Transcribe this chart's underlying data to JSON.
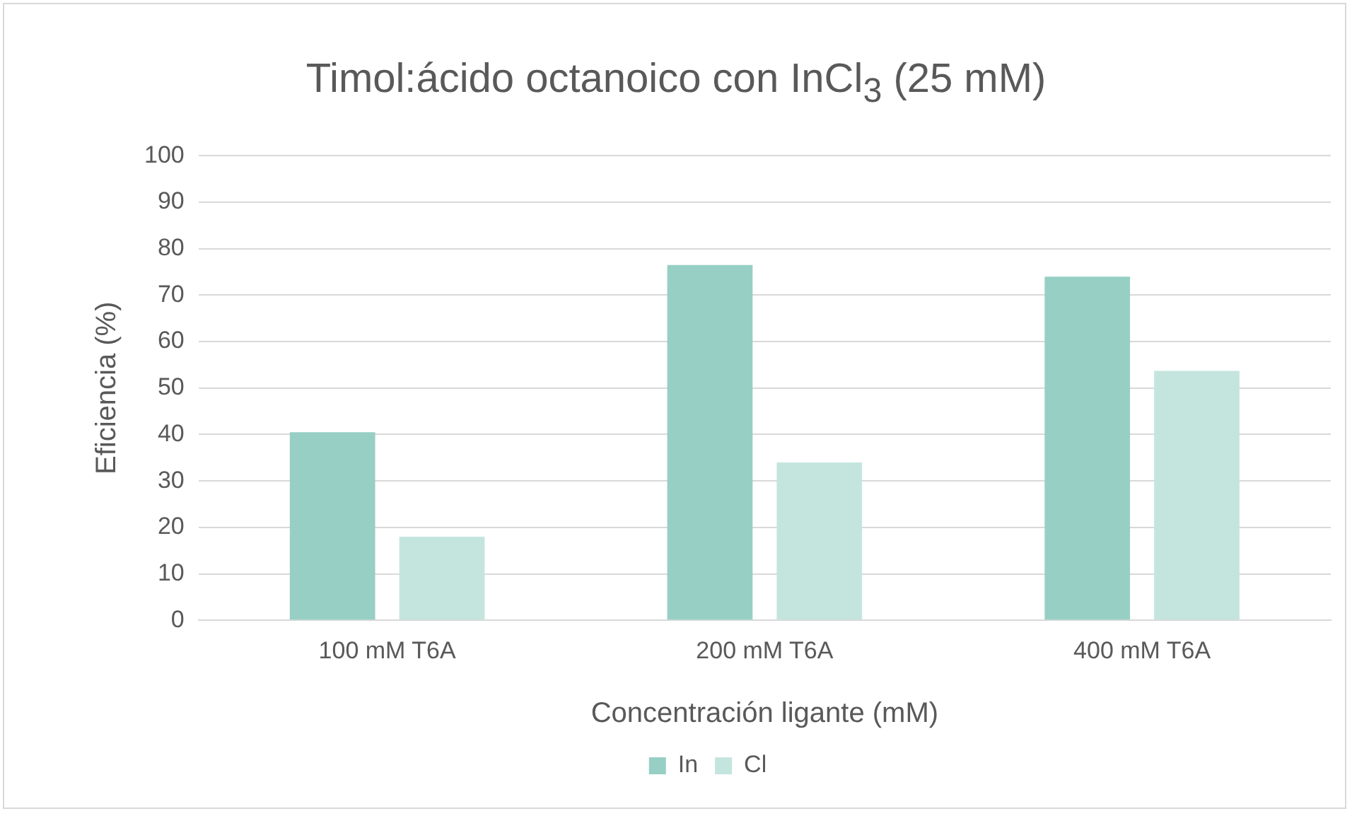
{
  "chart_data": {
    "type": "bar",
    "title": "Timol:ácido octanoico con InCl$_{3}$ (25 mM)",
    "xlabel": "Concentración ligante (mM)",
    "ylabel": "Eficiencia (%)",
    "categories": [
      "100 mM T6A",
      "200 mM T6A",
      "400 mM T6A"
    ],
    "series": [
      {
        "name": "In",
        "color": "#97cfc4",
        "values": [
          40.5,
          76.5,
          74
        ]
      },
      {
        "name": "Cl",
        "color": "#c4e5de",
        "values": [
          18,
          34,
          53.7
        ]
      }
    ],
    "ylim": [
      0,
      100
    ],
    "yticks": [
      0,
      10,
      20,
      30,
      40,
      50,
      60,
      70,
      80,
      90,
      100
    ],
    "grid": "y",
    "legend": "bottom"
  }
}
